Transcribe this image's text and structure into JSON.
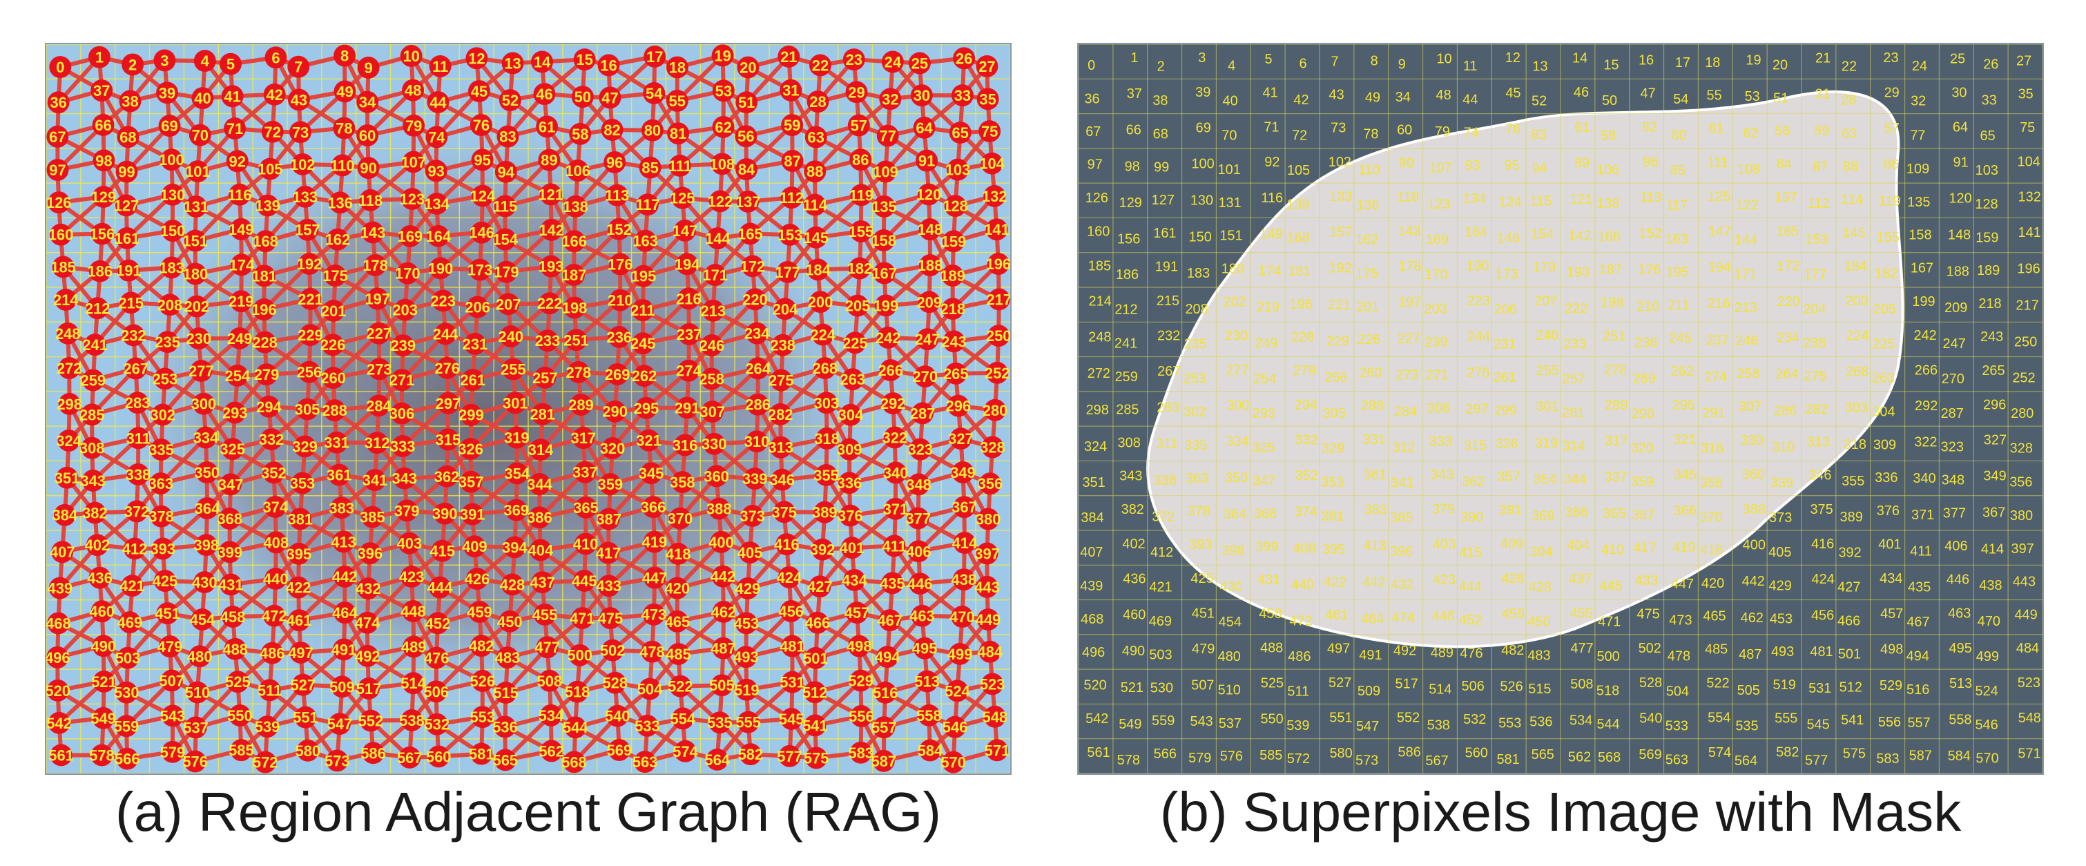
{
  "figure": {
    "panel_a": {
      "caption": "(a) Region Adjacent Graph (RAG)",
      "node_color": "#e8121a",
      "edge_color": "#e0463e",
      "label_color": "#f7ec3a",
      "background_color": "#9ec8e8"
    },
    "panel_b": {
      "caption": "(b) Superpixels Image with Mask",
      "background_color": "#4f5f6d",
      "mask_color": "#ede8e6",
      "label_color": "#f2e23a",
      "cell_line_color": "#d8d35a"
    },
    "superpixel_labels": [
      [
        0,
        1,
        2,
        3,
        4,
        5,
        6,
        7,
        8,
        9,
        10,
        11,
        12,
        13,
        14,
        15,
        16,
        17,
        18,
        19,
        20,
        21,
        22,
        23,
        24,
        25,
        26,
        27
      ],
      [
        36,
        37,
        38,
        39,
        40,
        41,
        42,
        43,
        49,
        34,
        48,
        44,
        45,
        52,
        46,
        50,
        47,
        54,
        55,
        53,
        51,
        31,
        28,
        29,
        32,
        30,
        33,
        35
      ],
      [
        67,
        66,
        68,
        69,
        70,
        71,
        72,
        73,
        78,
        60,
        79,
        74,
        76,
        83,
        61,
        58,
        82,
        80,
        81,
        62,
        56,
        59,
        63,
        57,
        77,
        64,
        65,
        75
      ],
      [
        97,
        98,
        99,
        100,
        101,
        92,
        105,
        102,
        110,
        90,
        107,
        93,
        95,
        94,
        89,
        106,
        96,
        85,
        111,
        108,
        84,
        87,
        88,
        86,
        109,
        91,
        103,
        104
      ],
      [
        126,
        129,
        127,
        130,
        131,
        116,
        139,
        133,
        136,
        118,
        123,
        134,
        124,
        115,
        121,
        138,
        113,
        117,
        125,
        122,
        137,
        112,
        114,
        119,
        135,
        120,
        128,
        132
      ],
      [
        160,
        156,
        161,
        150,
        151,
        149,
        168,
        157,
        162,
        143,
        169,
        164,
        146,
        154,
        142,
        166,
        152,
        163,
        147,
        144,
        165,
        153,
        145,
        155,
        158,
        148,
        159,
        141
      ],
      [
        185,
        186,
        191,
        183,
        180,
        174,
        181,
        192,
        175,
        178,
        170,
        190,
        173,
        179,
        193,
        187,
        176,
        195,
        194,
        171,
        172,
        177,
        184,
        182,
        167,
        188,
        189,
        196
      ],
      [
        214,
        212,
        215,
        208,
        202,
        219,
        196,
        221,
        201,
        197,
        203,
        223,
        206,
        207,
        222,
        198,
        210,
        211,
        216,
        213,
        220,
        204,
        200,
        205,
        199,
        209,
        218,
        217
      ],
      [
        248,
        241,
        232,
        235,
        230,
        249,
        228,
        229,
        226,
        227,
        239,
        244,
        231,
        240,
        233,
        251,
        236,
        245,
        237,
        246,
        234,
        238,
        224,
        225,
        242,
        247,
        243,
        250
      ],
      [
        272,
        259,
        267,
        253,
        277,
        254,
        279,
        256,
        260,
        273,
        271,
        276,
        261,
        255,
        257,
        278,
        269,
        262,
        274,
        258,
        264,
        275,
        268,
        263,
        266,
        270,
        265,
        252
      ],
      [
        298,
        285,
        283,
        302,
        300,
        293,
        294,
        305,
        288,
        284,
        306,
        297,
        299,
        301,
        281,
        289,
        290,
        295,
        291,
        307,
        286,
        282,
        303,
        304,
        292,
        287,
        296,
        280
      ],
      [
        324,
        308,
        311,
        335,
        334,
        325,
        332,
        329,
        331,
        312,
        333,
        315,
        326,
        319,
        314,
        317,
        320,
        321,
        316,
        330,
        310,
        313,
        318,
        309,
        322,
        323,
        327,
        328
      ],
      [
        351,
        343,
        338,
        363,
        350,
        347,
        352,
        353,
        361,
        341,
        343,
        362,
        357,
        354,
        344,
        337,
        359,
        345,
        358,
        360,
        339,
        346,
        355,
        336,
        340,
        348,
        349,
        356
      ],
      [
        384,
        382,
        372,
        378,
        364,
        368,
        374,
        381,
        383,
        385,
        379,
        390,
        391,
        369,
        386,
        365,
        387,
        366,
        370,
        388,
        373,
        375,
        389,
        376,
        371,
        377,
        367,
        380
      ],
      [
        407,
        402,
        412,
        393,
        398,
        399,
        408,
        395,
        413,
        396,
        403,
        415,
        409,
        394,
        404,
        410,
        417,
        419,
        418,
        400,
        405,
        416,
        392,
        401,
        411,
        406,
        414,
        397
      ],
      [
        439,
        436,
        421,
        425,
        430,
        431,
        440,
        422,
        442,
        432,
        423,
        444,
        426,
        428,
        437,
        445,
        433,
        447,
        420,
        442,
        429,
        424,
        427,
        434,
        435,
        446,
        438,
        443
      ],
      [
        468,
        460,
        469,
        451,
        454,
        458,
        472,
        461,
        464,
        474,
        448,
        452,
        459,
        450,
        455,
        471,
        475,
        473,
        465,
        462,
        453,
        456,
        466,
        457,
        467,
        463,
        470,
        449
      ],
      [
        496,
        490,
        503,
        479,
        480,
        488,
        486,
        497,
        491,
        492,
        489,
        476,
        482,
        483,
        477,
        500,
        502,
        478,
        485,
        487,
        493,
        481,
        501,
        498,
        494,
        495,
        499,
        484
      ],
      [
        520,
        521,
        530,
        507,
        510,
        525,
        511,
        527,
        509,
        517,
        514,
        506,
        526,
        515,
        508,
        518,
        528,
        504,
        522,
        505,
        519,
        531,
        512,
        529,
        516,
        513,
        524,
        523
      ],
      [
        542,
        549,
        559,
        543,
        537,
        550,
        539,
        551,
        547,
        552,
        538,
        532,
        553,
        536,
        534,
        544,
        540,
        533,
        554,
        535,
        555,
        545,
        541,
        556,
        557,
        558,
        546,
        548
      ],
      [
        561,
        578,
        566,
        579,
        576,
        585,
        572,
        580,
        573,
        586,
        567,
        560,
        581,
        565,
        562,
        568,
        569,
        563,
        574,
        564,
        582,
        577,
        575,
        583,
        587,
        584,
        570,
        571
      ]
    ]
  }
}
